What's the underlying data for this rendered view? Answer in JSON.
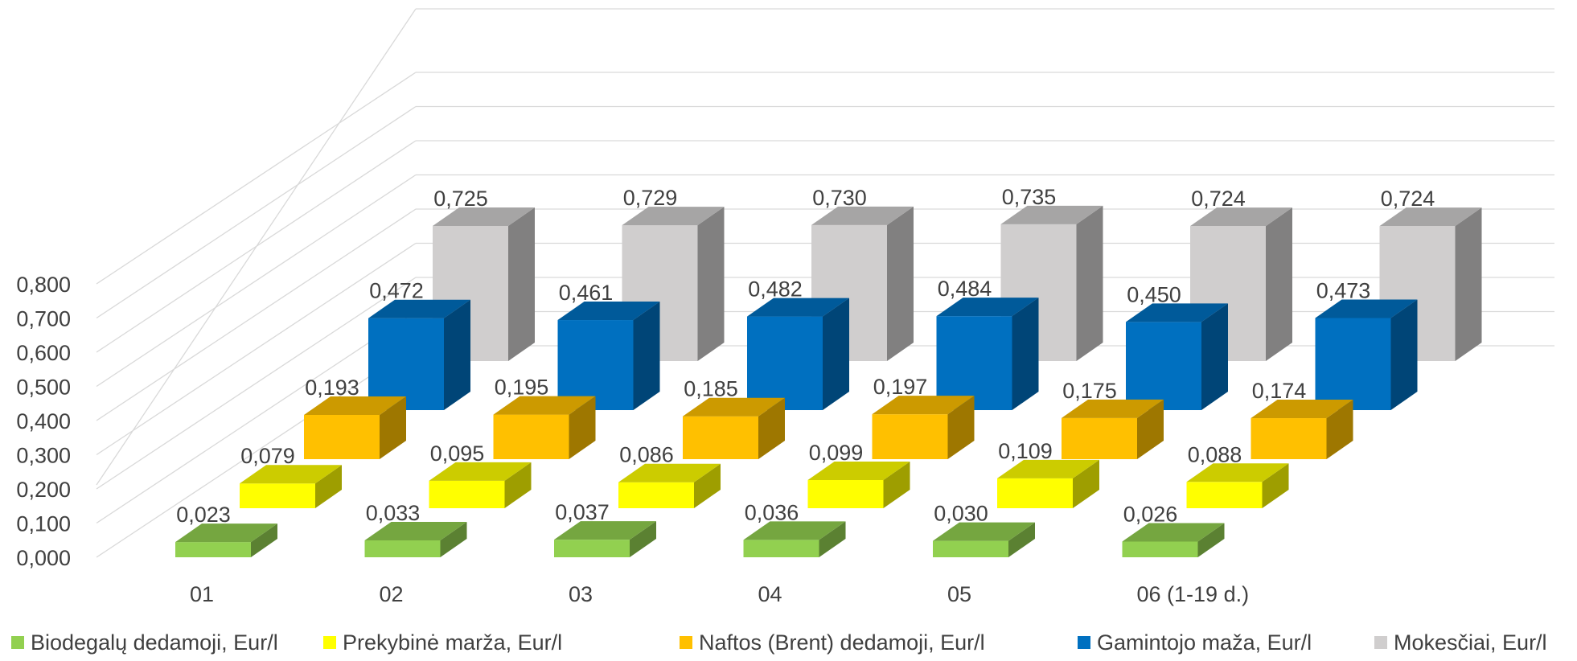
{
  "chart_data": {
    "type": "bar",
    "title": "",
    "xlabel": "",
    "ylabel": "",
    "ylim": [
      0,
      0.8
    ],
    "y_ticks": [
      "0,000",
      "0,100",
      "0,200",
      "0,300",
      "0,400",
      "0,500",
      "0,600",
      "0,700",
      "0,800"
    ],
    "grid": true,
    "legend_position": "bottom",
    "categories": [
      "01",
      "02",
      "03",
      "04",
      "05",
      "06 (1-19 d.)"
    ],
    "series": [
      {
        "name": "Biodegalų dedamoji, Eur/l",
        "color": "#92D050",
        "values": [
          0.023,
          0.033,
          0.037,
          0.036,
          0.03,
          0.026
        ],
        "labels": [
          "0,023",
          "0,033",
          "0,037",
          "0,036",
          "0,030",
          "0,026"
        ]
      },
      {
        "name": "Prekybinė marža, Eur/l",
        "color": "#FFFF00",
        "values": [
          0.079,
          0.095,
          0.086,
          0.099,
          0.109,
          0.088
        ],
        "labels": [
          "0,079",
          "0,095",
          "0,086",
          "0,099",
          "0,109",
          "0,088"
        ]
      },
      {
        "name": "Naftos (Brent) dedamoji, Eur/l",
        "color": "#FFC000",
        "values": [
          0.193,
          0.195,
          0.185,
          0.197,
          0.175,
          0.174
        ],
        "labels": [
          "0,193",
          "0,195",
          "0,185",
          "0,197",
          "0,175",
          "0,174"
        ]
      },
      {
        "name": "Gamintojo maža, Eur/l",
        "color": "#0070C0",
        "values": [
          0.472,
          0.461,
          0.482,
          0.484,
          0.45,
          0.473
        ],
        "labels": [
          "0,472",
          "0,461",
          "0,482",
          "0,484",
          "0,450",
          "0,473"
        ]
      },
      {
        "name": "Mokesčiai, Eur/l",
        "color": "#D0CECE",
        "values": [
          0.725,
          0.729,
          0.73,
          0.735,
          0.724,
          0.724
        ],
        "labels": [
          "0,725",
          "0,729",
          "0,730",
          "0,735",
          "0,724",
          "0,724"
        ]
      }
    ]
  }
}
